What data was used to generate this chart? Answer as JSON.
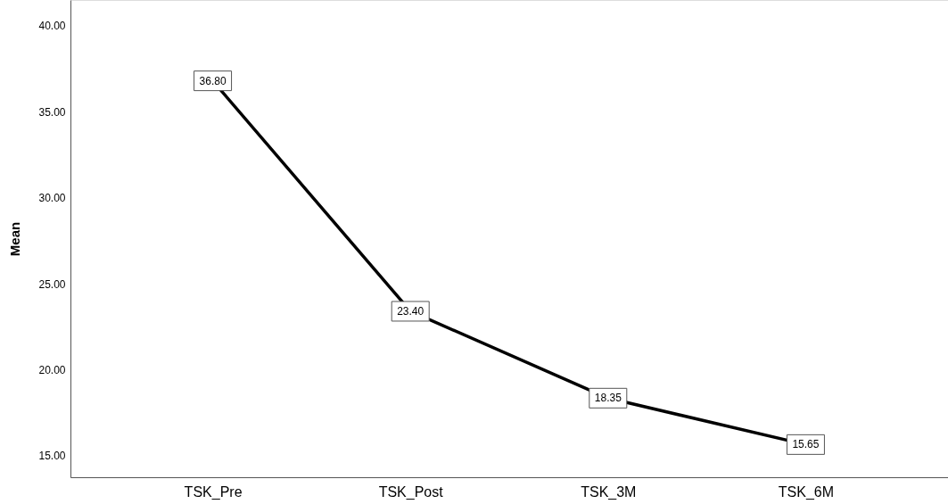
{
  "chart_data": {
    "type": "line",
    "ylabel": "Mean",
    "categories": [
      "TSK_Pre",
      "TSK_Post",
      "TSK_3M",
      "TSK_6M"
    ],
    "values": [
      36.8,
      23.4,
      18.35,
      15.65
    ],
    "color": "#000000",
    "marker": "square",
    "value_labels": [
      "36.80",
      "23.40",
      "18.35",
      "15.65"
    ],
    "ylim": [
      13.75,
      41.5
    ],
    "yticks": [
      {
        "value": 15,
        "label": "15.00"
      },
      {
        "value": 20,
        "label": "20.00"
      },
      {
        "value": 25,
        "label": "25.00"
      },
      {
        "value": 30,
        "label": "30.00"
      },
      {
        "value": 35,
        "label": "35.00"
      },
      {
        "value": 40,
        "label": "40.00"
      }
    ],
    "grid": false
  }
}
